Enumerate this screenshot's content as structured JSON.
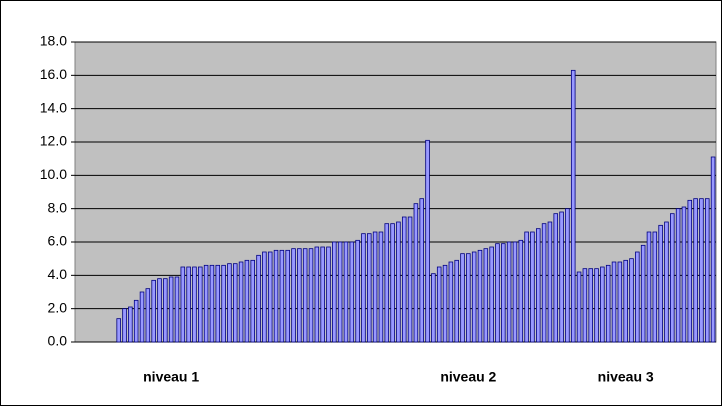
{
  "chart_data": {
    "type": "bar",
    "categories": [
      null,
      null,
      null,
      null,
      null,
      null,
      null,
      null,
      null,
      null,
      null,
      null,
      null,
      null,
      null,
      null,
      "niveau 1",
      null,
      null,
      null,
      null,
      null,
      null,
      null,
      null,
      null,
      null,
      null,
      null,
      null,
      null,
      null,
      null,
      null,
      null,
      null,
      null,
      null,
      null,
      null,
      null,
      null,
      null,
      null,
      null,
      null,
      null,
      null,
      null,
      null,
      null,
      null,
      null,
      null,
      null,
      null,
      null,
      null,
      null,
      null,
      null,
      null,
      null,
      null,
      null,
      null,
      null,
      "niveau 2",
      null,
      null,
      null,
      null,
      null,
      null,
      null,
      null,
      null,
      null,
      null,
      null,
      null,
      null,
      null,
      null,
      null,
      null,
      null,
      null,
      null,
      null,
      null,
      null,
      null,
      null,
      "niveau 3",
      null,
      null,
      null,
      null,
      null,
      null,
      null,
      null,
      null,
      null,
      null,
      null,
      null,
      null,
      null
    ],
    "values": [
      null,
      null,
      null,
      null,
      null,
      null,
      null,
      1.4,
      2.0,
      2.1,
      2.5,
      3.0,
      3.2,
      3.7,
      3.8,
      3.8,
      3.9,
      3.9,
      4.5,
      4.5,
      4.5,
      4.5,
      4.6,
      4.6,
      4.6,
      4.6,
      4.7,
      4.7,
      4.8,
      4.9,
      4.9,
      5.2,
      5.4,
      5.4,
      5.5,
      5.5,
      5.5,
      5.6,
      5.6,
      5.6,
      5.6,
      5.7,
      5.7,
      5.7,
      6.0,
      6.0,
      6.0,
      6.0,
      6.1,
      6.5,
      6.5,
      6.6,
      6.6,
      7.1,
      7.1,
      7.2,
      7.5,
      7.5,
      8.3,
      8.6,
      12.1,
      4.1,
      4.5,
      4.6,
      4.8,
      4.9,
      5.3,
      5.3,
      5.4,
      5.5,
      5.6,
      5.7,
      5.9,
      5.9,
      6.0,
      6.0,
      6.1,
      6.6,
      6.6,
      6.8,
      7.1,
      7.2,
      7.7,
      7.8,
      8.0,
      16.3,
      4.2,
      4.4,
      4.4,
      4.4,
      4.5,
      4.6,
      4.8,
      4.8,
      4.9,
      5.0,
      5.4,
      5.8,
      6.6,
      6.6,
      7.0,
      7.2,
      7.7,
      8.0,
      8.1,
      8.5,
      8.6,
      8.6,
      8.6,
      11.1
    ],
    "color": "#9999ff",
    "ylim": [
      0,
      18
    ],
    "yticks": [
      {
        "value": 0,
        "label": "0.0"
      },
      {
        "value": 2,
        "label": "2.0"
      },
      {
        "value": 4,
        "label": "4.0"
      },
      {
        "value": 6,
        "label": "6.0"
      },
      {
        "value": 8,
        "label": "8.0"
      },
      {
        "value": 10,
        "label": "10.0"
      },
      {
        "value": 12,
        "label": "12.0"
      },
      {
        "value": 14,
        "label": "14.0"
      },
      {
        "value": 16,
        "label": "16.0"
      },
      {
        "value": 18,
        "label": "18.0"
      }
    ],
    "grid": true
  }
}
